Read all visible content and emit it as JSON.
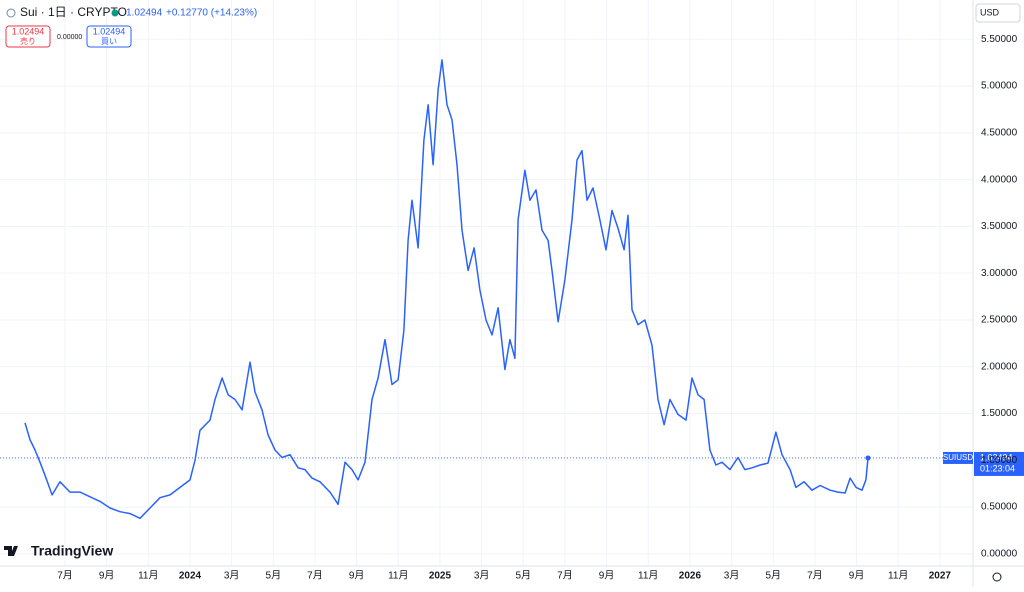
{
  "chart_data": {
    "type": "line",
    "title": "Sui · 1日 · CRYPTO",
    "change": "+0.12770 (+14.23%)",
    "sell_price": "1.02494",
    "sell_label": "売り",
    "spread": "0.00000",
    "buy_price": "1.02494",
    "buy_label": "買い",
    "currency": "USD",
    "symbol": "SUIUSD",
    "countdown": "01:23:04",
    "brand": "TradingView",
    "grid": true,
    "xlim": [
      -3.12,
      43.59
    ],
    "ylim": [
      -0.13,
      5.92
    ],
    "xticks": [
      {
        "value": 0,
        "label": "7月"
      },
      {
        "value": 2,
        "label": "9月"
      },
      {
        "value": 4,
        "label": "11月"
      },
      {
        "value": 6,
        "label": "2024"
      },
      {
        "value": 8,
        "label": "3月"
      },
      {
        "value": 10,
        "label": "5月"
      },
      {
        "value": 12,
        "label": "7月"
      },
      {
        "value": 14,
        "label": "9月"
      },
      {
        "value": 16,
        "label": "11月"
      },
      {
        "value": 18,
        "label": "2025"
      },
      {
        "value": 20,
        "label": "3月"
      },
      {
        "value": 22,
        "label": "5月"
      },
      {
        "value": 24,
        "label": "7月"
      },
      {
        "value": 26,
        "label": "9月"
      },
      {
        "value": 28,
        "label": "11月"
      },
      {
        "value": 30,
        "label": "2026"
      },
      {
        "value": 32,
        "label": "3月"
      },
      {
        "value": 34,
        "label": "5月"
      },
      {
        "value": 36,
        "label": "7月"
      },
      {
        "value": 38,
        "label": "9月"
      },
      {
        "value": 40,
        "label": "11月"
      },
      {
        "value": 42,
        "label": "2027"
      }
    ],
    "yticks": [
      {
        "value": 0,
        "label": "0.00000"
      },
      {
        "value": 0.5,
        "label": "0.50000"
      },
      {
        "value": 1,
        "label": "1.00000"
      },
      {
        "value": 1.5,
        "label": "1.50000"
      },
      {
        "value": 2,
        "label": "2.00000"
      },
      {
        "value": 2.5,
        "label": "2.50000"
      },
      {
        "value": 3,
        "label": "3.00000"
      },
      {
        "value": 3.5,
        "label": "3.50000"
      },
      {
        "value": 4,
        "label": "4.00000"
      },
      {
        "value": 4.5,
        "label": "4.50000"
      },
      {
        "value": 5,
        "label": "5.00000"
      },
      {
        "value": 5.5,
        "label": "5.50000"
      }
    ],
    "series": [
      {
        "name": "SUIUSD",
        "color": "#2962ff",
        "x": [
          -1.92,
          -1.68,
          -1.44,
          -1.2,
          -0.96,
          -0.62,
          -0.24,
          0.24,
          0.72,
          1.2,
          1.68,
          2.16,
          2.64,
          3.12,
          3.6,
          4.08,
          4.56,
          5.04,
          5.52,
          6,
          6.24,
          6.48,
          6.96,
          7.2,
          7.54,
          7.83,
          8.16,
          8.5,
          8.88,
          9.12,
          9.46,
          9.75,
          10.08,
          10.42,
          10.8,
          11.19,
          11.52,
          11.86,
          12.24,
          12.72,
          13.11,
          13.44,
          13.78,
          14.07,
          14.4,
          14.74,
          15.03,
          15.36,
          15.7,
          15.99,
          16.27,
          16.47,
          16.66,
          16.95,
          17.23,
          17.43,
          17.67,
          17.91,
          18.1,
          18.34,
          18.58,
          18.82,
          19.06,
          19.35,
          19.64,
          19.92,
          20.21,
          20.5,
          20.79,
          21.12,
          21.36,
          21.6,
          21.75,
          22.08,
          22.32,
          22.61,
          22.9,
          23.19,
          23.38,
          23.67,
          24,
          24.34,
          24.58,
          24.82,
          25.06,
          25.35,
          25.68,
          25.97,
          26.26,
          26.55,
          26.84,
          27.03,
          27.22,
          27.51,
          27.84,
          28.18,
          28.47,
          28.76,
          29.04,
          29.43,
          29.81,
          30.1,
          30.39,
          30.68,
          30.96,
          31.25,
          31.54,
          31.92,
          32.31,
          32.64,
          32.98,
          33.37,
          33.75,
          34.13,
          34.42,
          34.81,
          35.09,
          35.48,
          35.86,
          36.25,
          36.73,
          37.11,
          37.45,
          37.69,
          37.98,
          38.26,
          38.45,
          38.55
        ],
        "values": [
          1.4,
          1.22,
          1.11,
          0.98,
          0.84,
          0.63,
          0.77,
          0.66,
          0.66,
          0.61,
          0.56,
          0.49,
          0.45,
          0.43,
          0.38,
          0.49,
          0.6,
          0.63,
          0.71,
          0.79,
          1,
          1.32,
          1.43,
          1.65,
          1.88,
          1.7,
          1.65,
          1.54,
          2.05,
          1.73,
          1.54,
          1.27,
          1.11,
          1.03,
          1.06,
          0.92,
          0.9,
          0.81,
          0.77,
          0.66,
          0.53,
          0.98,
          0.9,
          0.79,
          0.98,
          1.65,
          1.88,
          2.29,
          1.81,
          1.86,
          2.39,
          3.35,
          3.78,
          3.27,
          4.42,
          4.8,
          4.16,
          4.96,
          5.28,
          4.8,
          4.64,
          4.16,
          3.46,
          3.03,
          3.27,
          2.82,
          2.5,
          2.34,
          2.63,
          1.97,
          2.29,
          2.09,
          3.57,
          4.1,
          3.78,
          3.89,
          3.46,
          3.35,
          3.03,
          2.48,
          2.93,
          3.57,
          4.21,
          4.31,
          3.78,
          3.91,
          3.57,
          3.25,
          3.67,
          3.48,
          3.25,
          3.62,
          2.61,
          2.45,
          2.5,
          2.23,
          1.65,
          1.38,
          1.65,
          1.49,
          1.43,
          1.88,
          1.7,
          1.65,
          1.11,
          0.95,
          0.98,
          0.9,
          1.03,
          0.9,
          0.92,
          0.95,
          0.97,
          1.3,
          1.06,
          0.9,
          0.71,
          0.77,
          0.68,
          0.73,
          0.68,
          0.66,
          0.65,
          0.81,
          0.71,
          0.68,
          0.79,
          1.02494
        ]
      }
    ]
  }
}
